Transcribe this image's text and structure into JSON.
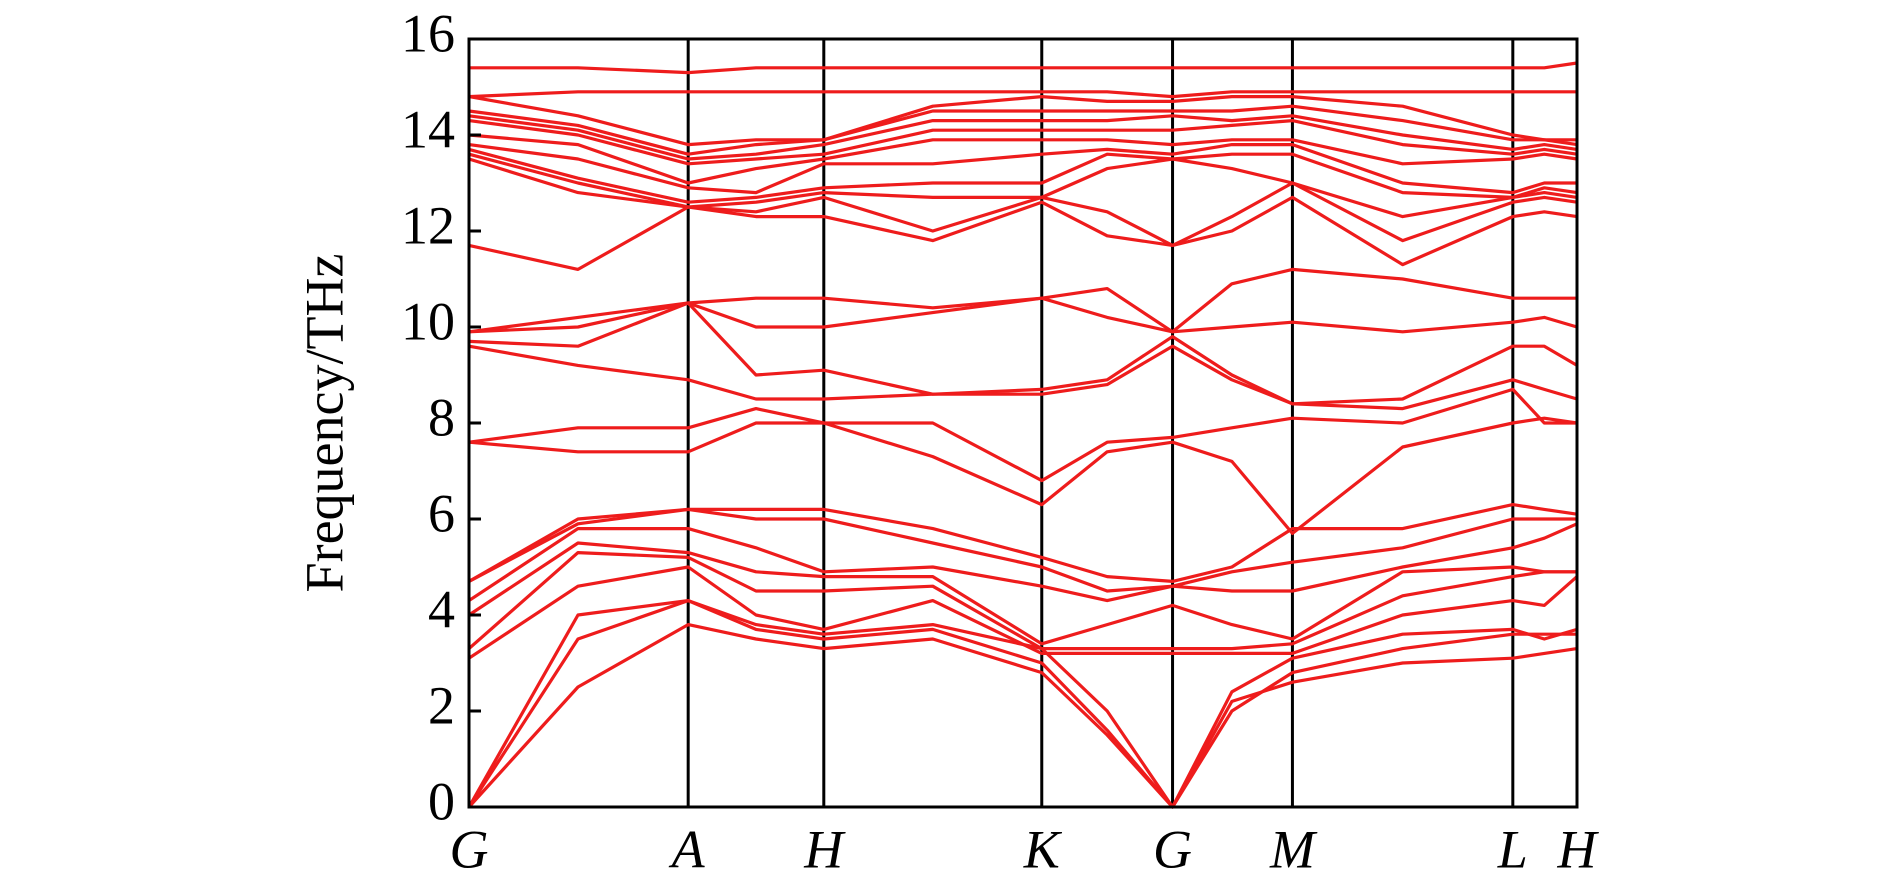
{
  "chart_data": {
    "type": "line",
    "ylabel": "Frequency/THz",
    "color": "#ee1c1c",
    "xlim": [
      0,
      9.15
    ],
    "xticks": [
      {
        "value": 0,
        "label": "G"
      },
      {
        "value": 1.81,
        "label": "A"
      },
      {
        "value": 2.93,
        "label": "H"
      },
      {
        "value": 4.73,
        "label": "K"
      },
      {
        "value": 5.81,
        "label": "G"
      },
      {
        "value": 6.8,
        "label": "M"
      },
      {
        "value": 8.62,
        "label": "L"
      },
      {
        "value": 9.15,
        "label": "H"
      }
    ],
    "ylim": [
      0,
      16
    ],
    "yticks": [
      0,
      2,
      4,
      6,
      8,
      10,
      12,
      14,
      16
    ],
    "x": [
      0,
      0.9,
      1.81,
      2.37,
      2.93,
      3.83,
      4.73,
      5.27,
      5.81,
      6.3,
      6.8,
      7.71,
      8.62,
      8.88,
      9.15
    ],
    "series": [
      {
        "values": [
          0,
          2.5,
          3.8,
          3.5,
          3.3,
          3.5,
          2.8,
          1.5,
          0,
          2.2,
          2.6,
          3.0,
          3.1,
          3.2,
          3.3
        ]
      },
      {
        "values": [
          0,
          3.5,
          4.3,
          3.7,
          3.5,
          3.7,
          3.0,
          1.6,
          0,
          2.0,
          2.8,
          3.3,
          3.6,
          3.6,
          3.6
        ]
      },
      {
        "values": [
          0,
          4.0,
          4.3,
          3.8,
          3.6,
          3.8,
          3.3,
          2.0,
          0,
          2.4,
          3.1,
          3.6,
          3.7,
          3.5,
          3.7
        ]
      },
      {
        "values": [
          3.1,
          4.6,
          5.0,
          4.0,
          3.7,
          4.3,
          3.2,
          3.2,
          3.2,
          3.2,
          3.2,
          4.0,
          4.3,
          4.2,
          4.8
        ]
      },
      {
        "values": [
          3.3,
          5.3,
          5.2,
          4.5,
          4.5,
          4.6,
          3.3,
          3.3,
          3.3,
          3.3,
          3.4,
          4.4,
          4.8,
          4.9,
          4.9
        ]
      },
      {
        "values": [
          4.0,
          5.5,
          5.3,
          4.9,
          4.8,
          4.8,
          3.4,
          3.8,
          4.2,
          3.8,
          3.5,
          4.9,
          5.0,
          4.9,
          4.9
        ]
      },
      {
        "values": [
          4.3,
          5.8,
          5.8,
          5.4,
          4.9,
          5.0,
          4.6,
          4.3,
          4.6,
          4.5,
          4.5,
          5.0,
          5.4,
          5.6,
          5.9
        ]
      },
      {
        "values": [
          4.7,
          5.9,
          6.2,
          6.0,
          6.0,
          5.5,
          5.0,
          4.5,
          4.6,
          4.9,
          5.1,
          5.4,
          6.0,
          6.0,
          6.0
        ]
      },
      {
        "values": [
          4.7,
          6.0,
          6.2,
          6.2,
          6.2,
          5.8,
          5.2,
          4.8,
          4.7,
          5.0,
          5.8,
          5.8,
          6.3,
          6.2,
          6.1
        ]
      },
      {
        "values": [
          7.6,
          7.4,
          7.4,
          8.0,
          8.0,
          7.3,
          6.3,
          7.4,
          7.6,
          7.2,
          5.7,
          7.5,
          8.0,
          8.1,
          8.0
        ]
      },
      {
        "values": [
          7.6,
          7.9,
          7.9,
          8.3,
          8.0,
          8.0,
          6.8,
          7.6,
          7.7,
          7.9,
          8.1,
          8.0,
          8.7,
          8.0,
          8.0
        ]
      },
      {
        "values": [
          9.6,
          9.2,
          8.9,
          8.5,
          8.5,
          8.6,
          8.6,
          8.8,
          9.6,
          8.9,
          8.4,
          8.3,
          8.9,
          8.7,
          8.5
        ]
      },
      {
        "values": [
          9.7,
          9.6,
          10.5,
          9.0,
          9.1,
          8.6,
          8.7,
          8.9,
          9.8,
          9.0,
          8.4,
          8.5,
          9.6,
          9.6,
          9.2
        ]
      },
      {
        "values": [
          9.9,
          10.2,
          10.5,
          10.0,
          10.0,
          10.3,
          10.6,
          10.2,
          9.9,
          10.0,
          10.1,
          9.9,
          10.1,
          10.2,
          10.0
        ]
      },
      {
        "values": [
          9.9,
          10.0,
          10.5,
          10.6,
          10.6,
          10.4,
          10.6,
          10.8,
          9.9,
          10.9,
          11.2,
          11.0,
          10.6,
          10.6,
          10.6
        ]
      },
      {
        "values": [
          11.7,
          11.2,
          12.5,
          12.3,
          12.3,
          11.8,
          12.6,
          11.9,
          11.7,
          12.0,
          12.7,
          11.3,
          12.3,
          12.4,
          12.3
        ]
      },
      {
        "values": [
          13.5,
          12.8,
          12.5,
          12.4,
          12.7,
          12.0,
          12.7,
          12.4,
          11.7,
          12.3,
          13.0,
          11.8,
          12.6,
          12.7,
          12.6
        ]
      },
      {
        "values": [
          13.6,
          13.0,
          12.5,
          12.6,
          12.8,
          12.7,
          12.7,
          13.3,
          13.5,
          13.3,
          13.0,
          12.3,
          12.7,
          12.8,
          12.7
        ]
      },
      {
        "values": [
          13.7,
          13.1,
          12.6,
          12.7,
          12.9,
          13.0,
          13.0,
          13.6,
          13.5,
          13.6,
          13.6,
          12.8,
          12.7,
          12.9,
          12.8
        ]
      },
      {
        "values": [
          13.8,
          13.5,
          12.9,
          12.8,
          13.4,
          13.4,
          13.6,
          13.7,
          13.6,
          13.8,
          13.8,
          13.0,
          12.8,
          13.0,
          13.0
        ]
      },
      {
        "values": [
          14.0,
          13.8,
          13.0,
          13.3,
          13.5,
          13.9,
          13.9,
          13.9,
          13.8,
          13.9,
          13.9,
          13.4,
          13.5,
          13.6,
          13.5
        ]
      },
      {
        "values": [
          14.3,
          14.0,
          13.4,
          13.5,
          13.6,
          14.1,
          14.1,
          14.1,
          14.1,
          14.2,
          14.3,
          13.8,
          13.6,
          13.7,
          13.6
        ]
      },
      {
        "values": [
          14.4,
          14.1,
          13.5,
          13.6,
          13.8,
          14.3,
          14.3,
          14.3,
          14.4,
          14.3,
          14.4,
          14.0,
          13.7,
          13.8,
          13.7
        ]
      },
      {
        "values": [
          14.5,
          14.2,
          13.6,
          13.8,
          13.9,
          14.5,
          14.5,
          14.5,
          14.5,
          14.5,
          14.6,
          14.3,
          13.9,
          13.9,
          13.8
        ]
      },
      {
        "values": [
          14.8,
          14.4,
          13.8,
          13.9,
          13.9,
          14.6,
          14.8,
          14.7,
          14.7,
          14.8,
          14.8,
          14.6,
          14.0,
          13.9,
          13.9
        ]
      },
      {
        "values": [
          14.8,
          14.9,
          14.9,
          14.9,
          14.9,
          14.9,
          14.9,
          14.9,
          14.8,
          14.9,
          14.9,
          14.9,
          14.9,
          14.9,
          14.9
        ]
      },
      {
        "values": [
          15.4,
          15.4,
          15.3,
          15.4,
          15.4,
          15.4,
          15.4,
          15.4,
          15.4,
          15.4,
          15.4,
          15.4,
          15.4,
          15.4,
          15.5
        ]
      }
    ]
  }
}
